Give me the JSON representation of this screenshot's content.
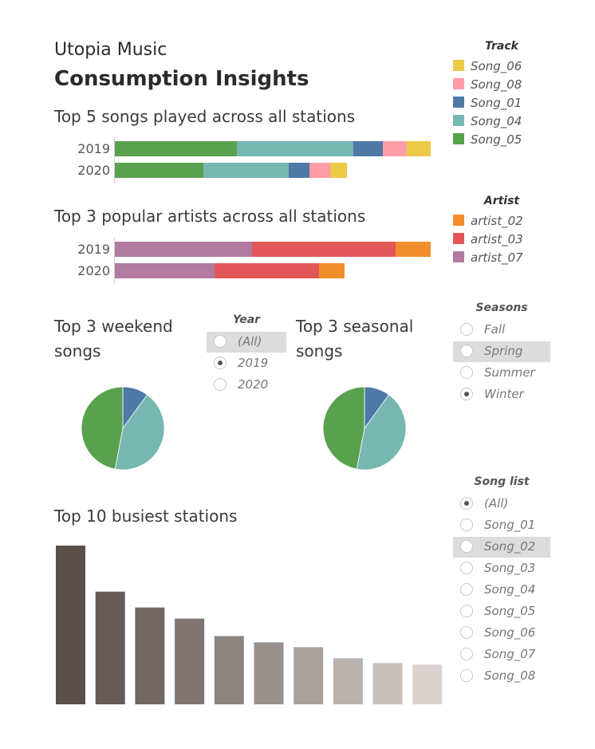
{
  "header": {
    "app_title": "Utopia Music",
    "dashboard_title": "Consumption Insights"
  },
  "colors": {
    "song_06": "#edc948",
    "song_08": "#ff9da7",
    "song_01": "#4e79a7",
    "song_04": "#76b7b2",
    "song_05": "#59a14f",
    "artist_02": "#f28e2b",
    "artist_03": "#e15759",
    "artist_07": "#b07aa1"
  },
  "track_legend": {
    "title": "Track",
    "items": [
      {
        "label": "Song_06",
        "color": "#edc948"
      },
      {
        "label": "Song_08",
        "color": "#ff9da7"
      },
      {
        "label": "Song_01",
        "color": "#4e79a7"
      },
      {
        "label": "Song_04",
        "color": "#76b7b2"
      },
      {
        "label": "Song_05",
        "color": "#59a14f"
      }
    ]
  },
  "artist_legend": {
    "title": "Artist",
    "items": [
      {
        "label": "artist_02",
        "color": "#f28e2b"
      },
      {
        "label": "artist_03",
        "color": "#e15759"
      },
      {
        "label": "artist_07",
        "color": "#b07aa1"
      }
    ]
  },
  "year_filter": {
    "title": "Year",
    "options": [
      "(All)",
      "2019",
      "2020"
    ],
    "selected": "2019",
    "highlighted": "(All)"
  },
  "season_filter": {
    "title": "Seasons",
    "options": [
      "Fall",
      "Spring",
      "Summer",
      "Winter"
    ],
    "selected": "Winter",
    "highlighted": "Spring"
  },
  "song_filter": {
    "title": "Song list",
    "options": [
      "(All)",
      "Song_01",
      "Song_02",
      "Song_03",
      "Song_04",
      "Song_05",
      "Song_06",
      "Song_07",
      "Song_08"
    ],
    "selected": "(All)",
    "highlighted": "Song_02"
  },
  "chart_data": [
    {
      "type": "bar",
      "orientation": "horizontal",
      "stacked": true,
      "title": "Top 5 songs played across all stations",
      "categories": [
        "2019",
        "2020"
      ],
      "series": [
        {
          "name": "Song_05",
          "color": "#59a14f",
          "values": [
            153,
            111
          ]
        },
        {
          "name": "Song_04",
          "color": "#76b7b2",
          "values": [
            146,
            107
          ]
        },
        {
          "name": "Song_01",
          "color": "#4e79a7",
          "values": [
            37,
            26
          ]
        },
        {
          "name": "Song_08",
          "color": "#ff9da7",
          "values": [
            30,
            26
          ]
        },
        {
          "name": "Song_06",
          "color": "#edc948",
          "values": [
            30,
            21
          ]
        }
      ]
    },
    {
      "type": "bar",
      "orientation": "horizontal",
      "stacked": true,
      "title": "Top 3 popular artists across all stations",
      "categories": [
        "2019",
        "2020"
      ],
      "series": [
        {
          "name": "artist_07",
          "color": "#b07aa1",
          "values": [
            172,
            125
          ]
        },
        {
          "name": "artist_03",
          "color": "#e15759",
          "values": [
            180,
            131
          ]
        },
        {
          "name": "artist_02",
          "color": "#f28e2b",
          "values": [
            44,
            32
          ]
        }
      ]
    },
    {
      "type": "pie",
      "title": "Top 3 weekend songs",
      "slices": [
        {
          "name": "Song_01",
          "color": "#4e79a7",
          "value": 10
        },
        {
          "name": "Song_04",
          "color": "#76b7b2",
          "value": 43
        },
        {
          "name": "Song_05",
          "color": "#59a14f",
          "value": 47
        }
      ]
    },
    {
      "type": "pie",
      "title": "Top 3 seasonal songs",
      "slices": [
        {
          "name": "Song_01",
          "color": "#4e79a7",
          "value": 10
        },
        {
          "name": "Song_04",
          "color": "#76b7b2",
          "value": 43
        },
        {
          "name": "Song_05",
          "color": "#59a14f",
          "value": 47
        }
      ]
    },
    {
      "type": "bar",
      "title": "Top 10 busiest stations",
      "values": [
        100,
        71,
        61,
        54,
        43,
        39,
        36,
        29,
        26,
        25
      ],
      "colors": [
        "#5a4f4b",
        "#655b57",
        "#716764",
        "#7e7572",
        "#8b8380",
        "#99918e",
        "#a8a19e",
        "#b8b1ae",
        "#c7c0bd",
        "#dad3d0"
      ]
    }
  ]
}
